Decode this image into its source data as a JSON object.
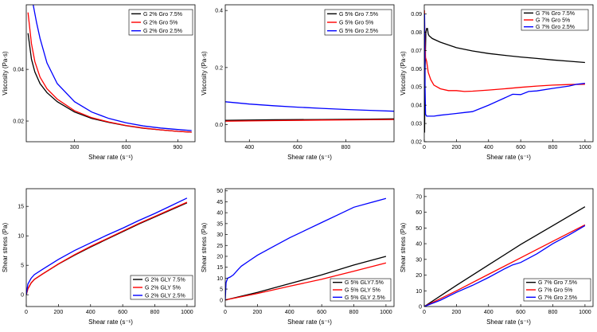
{
  "chart_data": [
    {
      "type": "line",
      "xlabel": "Shear rate (s⁻¹)",
      "ylabel": "Viscosity (Pa·s)",
      "xlim": [
        20,
        1000
      ],
      "ylim": [
        0.012,
        0.065
      ],
      "xticks": [
        300,
        600,
        900
      ],
      "yticks": [
        0.02,
        0.04
      ],
      "xtick_labels": [
        "300",
        "600",
        "900"
      ],
      "ytick_labels": [
        "0.02",
        "0.04"
      ],
      "legend_position": "top-right",
      "series": [
        {
          "name": "G 2% Gro 7.5%",
          "color": "#000000",
          "x": [
            30,
            50,
            70,
            100,
            140,
            200,
            300,
            400,
            500,
            600,
            700,
            800,
            900,
            980
          ],
          "y": [
            0.054,
            0.044,
            0.039,
            0.0345,
            0.031,
            0.0275,
            0.0235,
            0.021,
            0.0195,
            0.0182,
            0.0172,
            0.0166,
            0.016,
            0.0157
          ]
        },
        {
          "name": "G 2% Gro 5%",
          "color": "#ff0000",
          "x": [
            30,
            50,
            70,
            100,
            140,
            200,
            300,
            400,
            500,
            600,
            700,
            800,
            900,
            980
          ],
          "y": [
            0.062,
            0.05,
            0.043,
            0.037,
            0.0325,
            0.0285,
            0.024,
            0.0213,
            0.0196,
            0.0183,
            0.0173,
            0.0166,
            0.016,
            0.0157
          ]
        },
        {
          "name": "G 2% Gro 2.5%",
          "color": "#0000ff",
          "x": [
            60,
            80,
            100,
            140,
            200,
            300,
            400,
            500,
            600,
            700,
            800,
            900,
            980
          ],
          "y": [
            0.065,
            0.058,
            0.052,
            0.0425,
            0.0345,
            0.0275,
            0.0235,
            0.021,
            0.0193,
            0.0181,
            0.0173,
            0.0167,
            0.0163
          ]
        }
      ]
    },
    {
      "type": "line",
      "xlabel": "Shear rate (s⁻¹)",
      "ylabel": "Viscosity (Pa·s)",
      "xlim": [
        300,
        1000
      ],
      "ylim": [
        -0.06,
        0.42
      ],
      "xticks": [
        400,
        600,
        800
      ],
      "yticks": [
        0.0,
        0.2,
        0.4
      ],
      "xtick_labels": [
        "400",
        "600",
        "800"
      ],
      "ytick_labels": [
        "0.0",
        "0.2",
        "0.4"
      ],
      "legend_position": "top-right",
      "series": [
        {
          "name": "G 5% Gro 7.5%",
          "color": "#000000",
          "x": [
            300,
            500,
            700,
            900,
            1000
          ],
          "y": [
            0.015,
            0.017,
            0.018,
            0.019,
            0.02
          ]
        },
        {
          "name": "G 5% Gro 5%",
          "color": "#ff0000",
          "x": [
            300,
            500,
            700,
            900,
            1000
          ],
          "y": [
            0.012,
            0.014,
            0.016,
            0.017,
            0.018
          ]
        },
        {
          "name": "G 5% Gro 2.5%",
          "color": "#0000ff",
          "x": [
            300,
            400,
            500,
            600,
            700,
            800,
            900,
            1000
          ],
          "y": [
            0.08,
            0.072,
            0.066,
            0.061,
            0.057,
            0.053,
            0.05,
            0.047
          ]
        }
      ]
    },
    {
      "type": "line",
      "xlabel": "Shear rate (s⁻¹)",
      "ylabel": "Viscosity (Pa·s)",
      "xlim": [
        0,
        1050
      ],
      "ylim": [
        0.02,
        0.095
      ],
      "xticks": [
        0,
        200,
        400,
        600,
        800,
        1000
      ],
      "yticks": [
        0.02,
        0.03,
        0.04,
        0.05,
        0.06,
        0.07,
        0.08,
        0.09
      ],
      "xtick_labels": [
        "0",
        "200",
        "400",
        "600",
        "800",
        "1000"
      ],
      "ytick_labels": [
        "0.02",
        "0.03",
        "0.04",
        "0.05",
        "0.06",
        "0.07",
        "0.08",
        "0.09"
      ],
      "legend_position": "top-right",
      "series": [
        {
          "name": "G 7% Gro 7.5%",
          "color": "#000000",
          "x": [
            2,
            5,
            10,
            15,
            20,
            25,
            30,
            50,
            100,
            200,
            300,
            400,
            500,
            600,
            700,
            800,
            900,
            1000
          ],
          "y": [
            0.025,
            0.06,
            0.08,
            0.082,
            0.082,
            0.079,
            0.078,
            0.0765,
            0.0745,
            0.0715,
            0.0697,
            0.0683,
            0.0673,
            0.0664,
            0.0656,
            0.0648,
            0.0641,
            0.0634
          ]
        },
        {
          "name": "G 7% Gro 5%",
          "color": "#ff0000",
          "x": [
            1,
            3,
            8,
            15,
            25,
            40,
            60,
            100,
            150,
            200,
            250,
            300,
            400,
            500,
            600,
            700,
            800,
            900,
            1000
          ],
          "y": [
            0.092,
            0.08,
            0.066,
            0.064,
            0.058,
            0.054,
            0.051,
            0.049,
            0.048,
            0.048,
            0.0475,
            0.0477,
            0.0483,
            0.049,
            0.0498,
            0.0505,
            0.051,
            0.0513,
            0.0515
          ]
        },
        {
          "name": "G 7% Gro 2.5%",
          "color": "#0000ff",
          "x": [
            2,
            5,
            8,
            15,
            30,
            60,
            100,
            150,
            200,
            250,
            300,
            400,
            500,
            550,
            600,
            650,
            700,
            800,
            900,
            950,
            1000
          ],
          "y": [
            0.09,
            0.05,
            0.035,
            0.034,
            0.034,
            0.034,
            0.0345,
            0.035,
            0.0355,
            0.036,
            0.0365,
            0.04,
            0.044,
            0.046,
            0.0458,
            0.0475,
            0.0478,
            0.0492,
            0.0505,
            0.0515,
            0.052
          ]
        }
      ]
    },
    {
      "type": "line",
      "xlabel": "Shear rate (s⁻¹)",
      "ylabel": "Shear stress (Pa)",
      "xlim": [
        0,
        1050
      ],
      "ylim": [
        -2,
        18
      ],
      "xticks": [
        0,
        200,
        400,
        600,
        800,
        1000
      ],
      "yticks": [
        0,
        5,
        10,
        15
      ],
      "xtick_labels": [
        "0",
        "200",
        "400",
        "600",
        "800",
        "1000"
      ],
      "ytick_labels": [
        "0",
        "5",
        "10",
        "15"
      ],
      "legend_position": "bottom-right",
      "series": [
        {
          "name": "G 2% GLY 7.5%",
          "color": "#000000",
          "x": [
            0,
            10,
            30,
            50,
            100,
            200,
            300,
            400,
            500,
            600,
            700,
            800,
            900,
            1000
          ],
          "y": [
            0,
            1.0,
            2.0,
            2.6,
            3.5,
            5.2,
            6.7,
            8.1,
            9.4,
            10.7,
            12.0,
            13.2,
            14.4,
            15.6
          ]
        },
        {
          "name": "G 2% GLY 5%",
          "color": "#ff0000",
          "x": [
            0,
            10,
            30,
            50,
            100,
            200,
            300,
            400,
            500,
            600,
            700,
            800,
            900,
            1000
          ],
          "y": [
            0,
            1.0,
            2.0,
            2.6,
            3.5,
            5.25,
            6.8,
            8.2,
            9.5,
            10.8,
            12.1,
            13.3,
            14.5,
            15.7
          ]
        },
        {
          "name": "G 2% GLY 2.5%",
          "color": "#0000ff",
          "x": [
            0,
            10,
            30,
            50,
            100,
            200,
            300,
            400,
            500,
            600,
            700,
            800,
            900,
            1000
          ],
          "y": [
            0,
            1.8,
            2.8,
            3.4,
            4.3,
            6.0,
            7.5,
            8.8,
            10.1,
            11.3,
            12.6,
            13.8,
            15.1,
            16.4
          ]
        }
      ]
    },
    {
      "type": "line",
      "xlabel": "Shear rate (s⁻¹)",
      "ylabel": "Shear stress (Pa)",
      "xlim": [
        0,
        1050
      ],
      "ylim": [
        -3,
        51
      ],
      "xticks": [
        0,
        200,
        400,
        600,
        800,
        1000
      ],
      "yticks": [
        0,
        5,
        10,
        15,
        20,
        25,
        30,
        35,
        40,
        45,
        50
      ],
      "xtick_labels": [
        "0",
        "200",
        "400",
        "600",
        "800",
        "1000"
      ],
      "ytick_labels": [
        "0",
        "5",
        "10",
        "15",
        "20",
        "25",
        "30",
        "35",
        "40",
        "45",
        "50"
      ],
      "legend_position": "bottom-right",
      "series": [
        {
          "name": "G 5% GLY7.5%",
          "color": "#000000",
          "x": [
            0,
            200,
            400,
            600,
            800,
            1000
          ],
          "y": [
            0,
            3.5,
            7.5,
            11.5,
            16,
            20
          ]
        },
        {
          "name": "G 5% GLY 5%",
          "color": "#ff0000",
          "x": [
            0,
            200,
            400,
            600,
            800,
            1000
          ],
          "y": [
            0,
            3.0,
            6.3,
            9.5,
            13.2,
            17
          ]
        },
        {
          "name": "G 5% GLY 2.5%",
          "color": "#0000ff",
          "x": [
            0,
            5,
            15,
            30,
            50,
            80,
            100,
            150,
            200,
            300,
            400,
            500,
            600,
            700,
            800,
            900,
            1000
          ],
          "y": [
            0,
            8,
            10,
            10.5,
            11.5,
            14,
            15.5,
            18,
            20.5,
            24.5,
            28.5,
            32,
            35.5,
            39,
            42.5,
            44.5,
            46.5
          ]
        }
      ]
    },
    {
      "type": "line",
      "xlabel": "Shear rate (s⁻¹)",
      "ylabel": "Shear stress (Pa)",
      "xlim": [
        0,
        1050
      ],
      "ylim": [
        0,
        75
      ],
      "xticks": [
        0,
        200,
        400,
        600,
        800,
        1000
      ],
      "yticks": [
        0,
        10,
        20,
        30,
        40,
        50,
        60,
        70
      ],
      "xtick_labels": [
        "0",
        "200",
        "400",
        "600",
        "800",
        "1000"
      ],
      "ytick_labels": [
        "0",
        "10",
        "20",
        "30",
        "40",
        "50",
        "60",
        "70"
      ],
      "legend_position": "bottom-right",
      "series": [
        {
          "name": "G 7% Gro 7.5%",
          "color": "#000000",
          "x": [
            0,
            200,
            400,
            600,
            800,
            1000
          ],
          "y": [
            0,
            13.5,
            26.5,
            39.5,
            51.5,
            63.5
          ]
        },
        {
          "name": "G 7% Gro 5%",
          "color": "#ff0000",
          "x": [
            0,
            200,
            400,
            600,
            800,
            1000
          ],
          "y": [
            0,
            10,
            20.5,
            31,
            41.5,
            52
          ]
        },
        {
          "name": "G 7% Gro 2.5%",
          "color": "#0000ff",
          "x": [
            0,
            100,
            200,
            300,
            400,
            500,
            550,
            600,
            700,
            800,
            900,
            1000
          ],
          "y": [
            0,
            4,
            9,
            13.5,
            18.5,
            24,
            26.5,
            28,
            33.5,
            40,
            45.5,
            51.5
          ]
        }
      ]
    }
  ]
}
